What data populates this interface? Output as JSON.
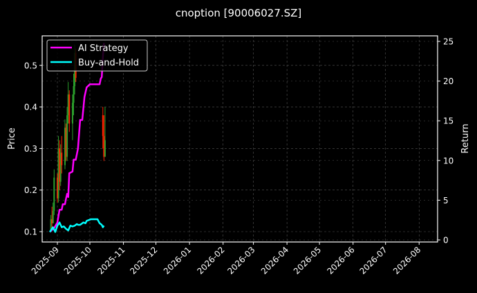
{
  "figure": {
    "title": "cnoption [90006027.SZ]",
    "background": "#000000"
  },
  "chart_data": {
    "type": "line",
    "title": "cnoption [90006027.SZ]",
    "xlabel": "",
    "ylabel": "Price",
    "y2label": "Return",
    "ylim": [
      0.08,
      0.57
    ],
    "y2lim": [
      -0.2,
      25.7
    ],
    "x_ticks": [
      "2025-09",
      "2025-10",
      "2025-11",
      "2025-12",
      "2026-01",
      "2026-02",
      "2026-03",
      "2026-04",
      "2026-05",
      "2026-06",
      "2026-07",
      "2026-08"
    ],
    "y_ticks": [
      0.1,
      0.2,
      0.3,
      0.4,
      0.5
    ],
    "y2_ticks": [
      0,
      5,
      10,
      15,
      20,
      25
    ],
    "grid": true,
    "legend": {
      "position": "upper left",
      "entries": [
        "AI Strategy",
        "Buy-and-Hold"
      ]
    },
    "colors": {
      "ai_strategy": "#ff00ff",
      "buy_and_hold": "#00ffff",
      "up": "#2ca02c",
      "down": "#ff2200",
      "grid": "#555555",
      "axes": "#ffffff"
    },
    "candles": [
      {
        "d": "2025-08-26",
        "o": 0.1,
        "h": 0.14,
        "l": 0.1,
        "c": 0.13
      },
      {
        "d": "2025-08-27",
        "o": 0.13,
        "h": 0.16,
        "l": 0.11,
        "c": 0.12
      },
      {
        "d": "2025-08-28",
        "o": 0.12,
        "h": 0.17,
        "l": 0.12,
        "c": 0.15
      },
      {
        "d": "2025-08-29",
        "o": 0.15,
        "h": 0.25,
        "l": 0.14,
        "c": 0.23
      },
      {
        "d": "2025-09-01",
        "o": 0.23,
        "h": 0.24,
        "l": 0.17,
        "c": 0.18
      },
      {
        "d": "2025-09-02",
        "o": 0.18,
        "h": 0.33,
        "l": 0.17,
        "c": 0.3
      },
      {
        "d": "2025-09-03",
        "o": 0.3,
        "h": 0.32,
        "l": 0.2,
        "c": 0.22
      },
      {
        "d": "2025-09-04",
        "o": 0.22,
        "h": 0.31,
        "l": 0.21,
        "c": 0.29
      },
      {
        "d": "2025-09-05",
        "o": 0.29,
        "h": 0.33,
        "l": 0.24,
        "c": 0.26
      },
      {
        "d": "2025-09-08",
        "o": 0.26,
        "h": 0.37,
        "l": 0.25,
        "c": 0.35
      },
      {
        "d": "2025-09-09",
        "o": 0.35,
        "h": 0.36,
        "l": 0.27,
        "c": 0.28
      },
      {
        "d": "2025-09-10",
        "o": 0.28,
        "h": 0.4,
        "l": 0.27,
        "c": 0.38
      },
      {
        "d": "2025-09-11",
        "o": 0.38,
        "h": 0.46,
        "l": 0.36,
        "c": 0.43
      },
      {
        "d": "2025-09-12",
        "o": 0.43,
        "h": 0.44,
        "l": 0.34,
        "c": 0.36
      },
      {
        "d": "2025-09-15",
        "o": 0.36,
        "h": 0.43,
        "l": 0.32,
        "c": 0.41
      },
      {
        "d": "2025-09-16",
        "o": 0.41,
        "h": 0.48,
        "l": 0.38,
        "c": 0.45
      },
      {
        "d": "2025-09-17",
        "o": 0.45,
        "h": 0.55,
        "l": 0.43,
        "c": 0.53
      },
      {
        "d": "2025-09-18",
        "o": 0.53,
        "h": 0.54,
        "l": 0.46,
        "c": 0.47
      },
      {
        "d": "2025-10-13",
        "o": 0.38,
        "h": 0.4,
        "l": 0.3,
        "c": 0.33
      },
      {
        "d": "2025-10-14",
        "o": 0.33,
        "h": 0.38,
        "l": 0.27,
        "c": 0.28
      },
      {
        "d": "2025-10-15",
        "o": 0.28,
        "h": 0.4,
        "l": 0.28,
        "c": 0.32
      }
    ],
    "series": [
      {
        "name": "AI Strategy",
        "axis": "right",
        "points": [
          [
            "2025-08-25",
            1.0
          ],
          [
            "2025-08-29",
            1.5
          ],
          [
            "2025-09-01",
            2.2
          ],
          [
            "2025-09-03",
            3.8
          ],
          [
            "2025-09-05",
            3.8
          ],
          [
            "2025-09-06",
            4.5
          ],
          [
            "2025-09-08",
            4.5
          ],
          [
            "2025-09-09",
            5.2
          ],
          [
            "2025-09-10",
            5.8
          ],
          [
            "2025-09-11",
            5.4
          ],
          [
            "2025-09-12",
            8.4
          ],
          [
            "2025-09-15",
            8.6
          ],
          [
            "2025-09-16",
            10.1
          ],
          [
            "2025-09-18",
            10.1
          ],
          [
            "2025-09-20",
            11.5
          ],
          [
            "2025-09-22",
            15.1
          ],
          [
            "2025-09-24",
            15.1
          ],
          [
            "2025-09-26",
            18.0
          ],
          [
            "2025-09-28",
            19.2
          ],
          [
            "2025-10-01",
            19.6
          ],
          [
            "2025-10-03",
            19.6
          ],
          [
            "2025-10-05",
            19.6
          ],
          [
            "2025-10-08",
            19.6
          ],
          [
            "2025-10-10",
            19.6
          ],
          [
            "2025-10-11",
            20.3
          ],
          [
            "2025-10-12",
            20.5
          ],
          [
            "2025-10-13",
            23.0
          ],
          [
            "2025-10-14",
            24.8
          ]
        ]
      },
      {
        "name": "Buy-and-Hold",
        "axis": "right",
        "points": [
          [
            "2025-08-25",
            1.0
          ],
          [
            "2025-08-28",
            1.6
          ],
          [
            "2025-08-30",
            1.0
          ],
          [
            "2025-09-01",
            1.8
          ],
          [
            "2025-09-03",
            2.2
          ],
          [
            "2025-09-05",
            1.6
          ],
          [
            "2025-09-07",
            1.7
          ],
          [
            "2025-09-09",
            1.4
          ],
          [
            "2025-09-11",
            1.2
          ],
          [
            "2025-09-13",
            1.8
          ],
          [
            "2025-09-15",
            1.7
          ],
          [
            "2025-09-17",
            1.8
          ],
          [
            "2025-09-19",
            2.0
          ],
          [
            "2025-09-20",
            1.9
          ],
          [
            "2025-09-22",
            1.9
          ],
          [
            "2025-09-25",
            2.2
          ],
          [
            "2025-09-27",
            2.1
          ],
          [
            "2025-09-28",
            2.4
          ],
          [
            "2025-10-02",
            2.6
          ],
          [
            "2025-10-08",
            2.6
          ],
          [
            "2025-10-10",
            2.1
          ],
          [
            "2025-10-12",
            1.9
          ],
          [
            "2025-10-13",
            1.6
          ],
          [
            "2025-10-14",
            1.8
          ]
        ]
      }
    ]
  }
}
